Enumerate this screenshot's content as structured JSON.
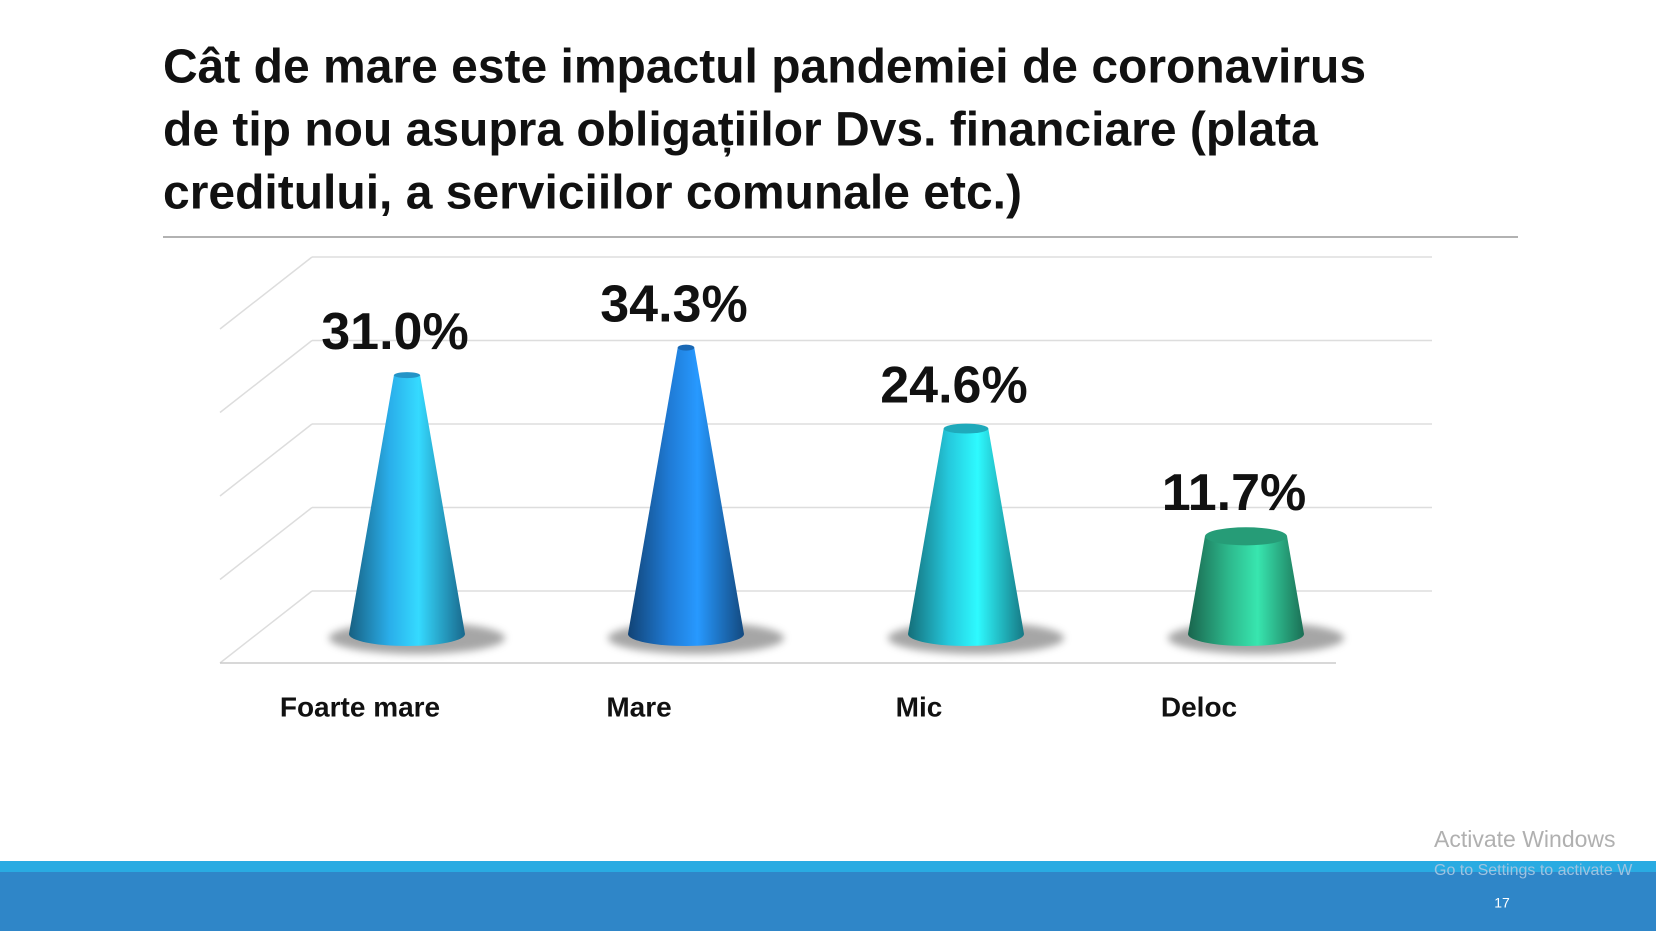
{
  "chart_data": {
    "type": "cone",
    "title_lines": [
      "Cât de mare este impactul pandemiei de coronavirus",
      "de tip nou asupra obligațiilor Dvs. financiare (plata",
      "creditului, a serviciilor comunale etc.)"
    ],
    "categories": [
      "Foarte mare",
      "Mare",
      "Mic",
      "Deloc"
    ],
    "values": [
      31.0,
      34.3,
      24.6,
      11.7
    ],
    "value_labels": [
      "31.0%",
      "34.3%",
      "24.6%",
      "11.7%"
    ],
    "colors": [
      "#2aaeea",
      "#1f7ad4",
      "#25c8dc",
      "#2db88c"
    ],
    "ylim": [
      0,
      40
    ],
    "yticks": [
      0,
      10,
      20,
      30,
      40
    ],
    "grid": true
  },
  "page_number": "17",
  "watermark": [
    "Activate Windows",
    "Go to Settings to activate W"
  ]
}
